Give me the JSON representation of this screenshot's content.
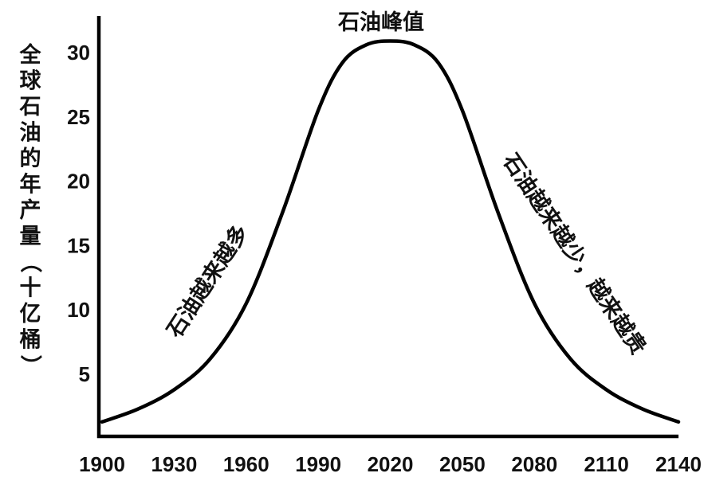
{
  "chart_data": {
    "type": "line",
    "title": "",
    "xlabel": "",
    "ylabel": "全球石油的年产量（十亿桶）",
    "xlim": [
      1900,
      2140
    ],
    "ylim": [
      0,
      32
    ],
    "x_ticks": [
      "1900",
      "1930",
      "1960",
      "1990",
      "2020",
      "2050",
      "2080",
      "2110",
      "2140"
    ],
    "y_ticks": [
      "5",
      "10",
      "15",
      "20",
      "25",
      "30"
    ],
    "grid": false,
    "series": [
      {
        "x": [
          1900,
          1915,
          1930,
          1945,
          1960,
          1975,
          1990,
          2000,
          2010,
          2020,
          2030,
          2040,
          2050,
          2065,
          2080,
          2095,
          2110,
          2125,
          2140
        ],
        "y": [
          1.3,
          2.3,
          3.8,
          6.2,
          10.5,
          17.5,
          25.5,
          29.2,
          30.6,
          30.9,
          30.6,
          29.2,
          25.5,
          17.5,
          10.5,
          6.2,
          3.8,
          2.3,
          1.3
        ]
      }
    ],
    "annotations": [
      {
        "text": "石油峰值",
        "x": 2020,
        "y": 31
      },
      {
        "text": "石油越来越多",
        "x": 1945,
        "y": 10
      },
      {
        "text": "石油越来越少，越来越贵",
        "x": 2080,
        "y": 17
      }
    ]
  }
}
